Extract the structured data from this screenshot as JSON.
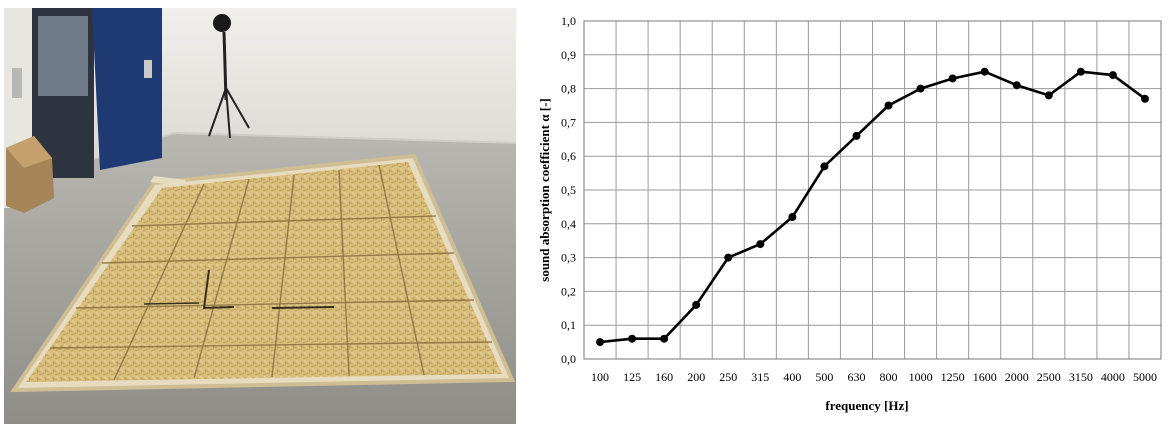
{
  "photo": {
    "subject": "sound absorption test sample laid out on the floor of a reverberation room"
  },
  "chart_data": {
    "type": "line",
    "categories": [
      "100",
      "125",
      "160",
      "200",
      "250",
      "315",
      "400",
      "500",
      "630",
      "800",
      "1000",
      "1250",
      "1600",
      "2000",
      "2500",
      "3150",
      "4000",
      "5000"
    ],
    "series": [
      {
        "values": [
          0.05,
          0.06,
          0.06,
          0.16,
          0.3,
          0.34,
          0.42,
          0.57,
          0.66,
          0.75,
          0.8,
          0.83,
          0.85,
          0.81,
          0.78,
          0.85,
          0.84,
          0.77
        ]
      }
    ],
    "xlabel": "frequency [Hz]",
    "ylabel": "sound absorption coefficient α [-]",
    "ylim": [
      0,
      1
    ],
    "yticks": [
      "0,0",
      "0,1",
      "0,2",
      "0,3",
      "0,4",
      "0,5",
      "0,6",
      "0,7",
      "0,8",
      "0,9",
      "1,0"
    ],
    "grid": true,
    "line_color": "#000000",
    "marker": "filled-circle"
  }
}
